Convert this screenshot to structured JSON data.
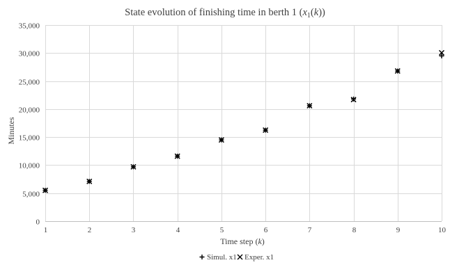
{
  "chart_data": {
    "type": "scatter",
    "title": {
      "prefix": "State evolution of finishing time in berth 1 (",
      "var": "x",
      "sub": "1",
      "mid": "(",
      "arg": "k",
      "suffix": "))"
    },
    "xlabel": {
      "prefix": "Time step (",
      "var": "k",
      "suffix": ")"
    },
    "ylabel": "Minutes",
    "xlim": [
      1,
      10
    ],
    "ylim": [
      0,
      35000
    ],
    "x_ticks": [
      1,
      2,
      3,
      4,
      5,
      6,
      7,
      8,
      9,
      10
    ],
    "y_ticks": [
      0,
      5000,
      10000,
      15000,
      20000,
      25000,
      30000,
      35000
    ],
    "y_tick_labels": [
      "0",
      "5,000",
      "10,000",
      "15,000",
      "20,000",
      "25,000",
      "30,000",
      "35,000"
    ],
    "grid": true,
    "legend_position": "bottom",
    "series": [
      {
        "name": "Simul. x1",
        "marker": "plus",
        "color": "#000000",
        "x": [
          1,
          2,
          3,
          4,
          5,
          6,
          7,
          8,
          9,
          10
        ],
        "y": [
          5500,
          7100,
          9700,
          11600,
          14500,
          16250,
          20600,
          21800,
          26800,
          29500
        ]
      },
      {
        "name": "Exper. x1",
        "marker": "cross",
        "color": "#000000",
        "x": [
          1,
          2,
          3,
          4,
          5,
          6,
          7,
          8,
          9,
          10
        ],
        "y": [
          5500,
          7100,
          9700,
          11600,
          14500,
          16250,
          20600,
          21700,
          26800,
          30050
        ]
      }
    ]
  }
}
